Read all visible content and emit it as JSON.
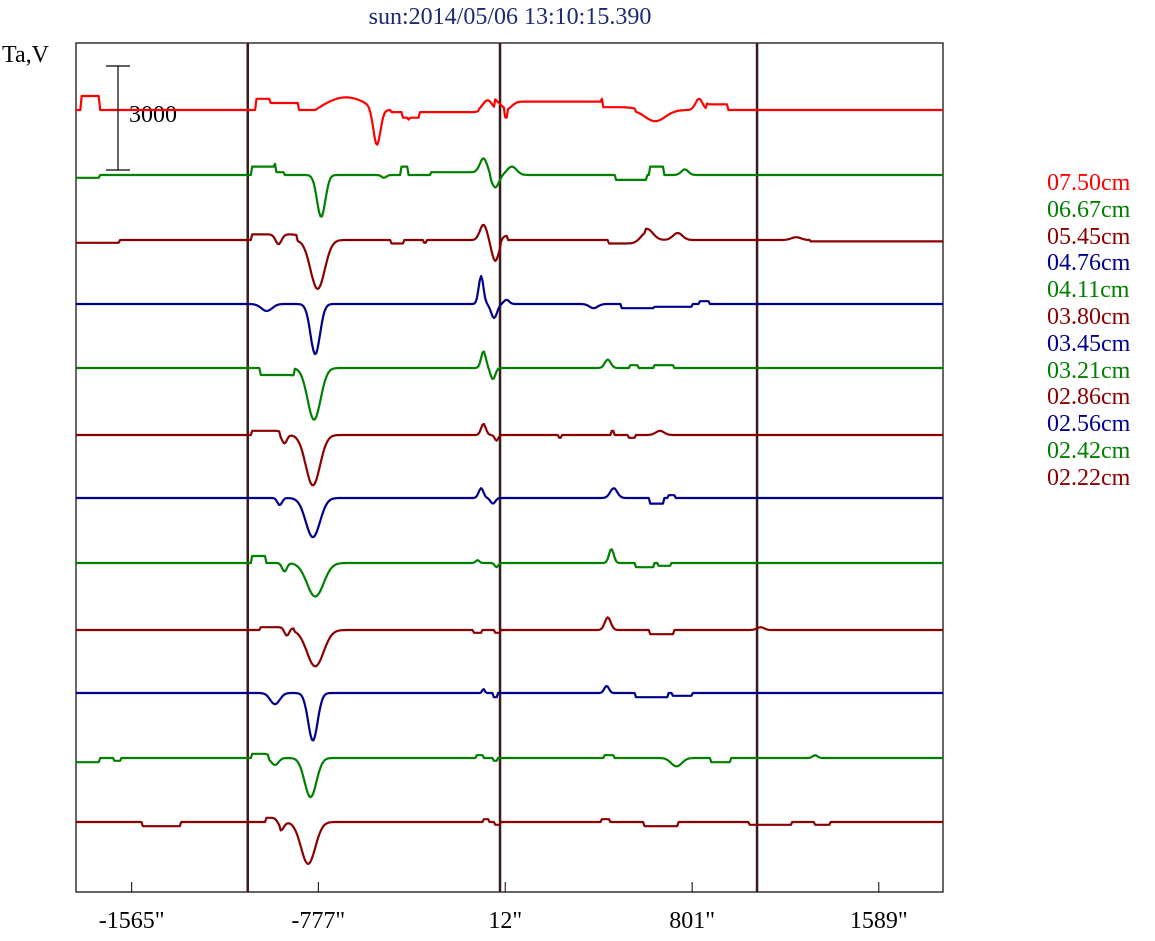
{
  "title": "sun:2014/05/06 13:10:15.390",
  "ylabel": "Ta,V",
  "scale_bar_label": "3000",
  "chart_data": {
    "type": "line",
    "title": "sun:2014/05/06 13:10:15.390",
    "ylabel": "Ta,V",
    "xlim": [
      -1800,
      1860
    ],
    "x_ticks": [
      -1565,
      -777,
      12,
      801,
      1589
    ],
    "x_tick_labels": [
      "-1565\"",
      "-777\"",
      "12\"",
      "801\"",
      "1589\""
    ],
    "vertical_lines_x": [
      -1075,
      -10,
      1075
    ],
    "scale_bar_value": 3000,
    "legend_position": "right",
    "series": [
      {
        "name": "07.50cm",
        "color": "#ff0000",
        "baseline": 110,
        "features": [
          [
            -1780,
            -1700,
            -1.0,
            "box"
          ],
          [
            -1040,
            -980,
            -0.8,
            "box"
          ],
          [
            -980,
            -860,
            -0.5,
            "box"
          ],
          [
            -790,
            -530,
            -1.0,
            "bump"
          ],
          [
            -560,
            -500,
            2.5,
            "gauss"
          ],
          [
            -400,
            -390,
            0.15,
            "gauss"
          ],
          [
            -470,
            -100,
            0.15,
            "box"
          ],
          [
            -100,
            -25,
            -0.7,
            "gauss"
          ],
          [
            -25,
            60,
            0.55,
            "gauss"
          ],
          [
            20,
            80,
            -0.6,
            "box"
          ],
          [
            80,
            420,
            -0.6,
            "box"
          ],
          [
            420,
            560,
            -0.2,
            "box"
          ],
          [
            560,
            730,
            0.8,
            "gauss"
          ],
          [
            800,
            860,
            -0.8,
            "gauss"
          ],
          [
            860,
            950,
            -0.4,
            "box"
          ],
          [
            1010,
            1860,
            0.0,
            "box"
          ],
          [
            -30,
            10,
            -0.65,
            "box"
          ],
          [
            -420,
            -350,
            0.4,
            "box"
          ]
        ]
      },
      {
        "name": "06.67cm",
        "color": "#008000",
        "baseline": 175,
        "features": [
          [
            -1800,
            -1700,
            0.2,
            "box"
          ],
          [
            -1060,
            -960,
            -0.6,
            "box"
          ],
          [
            -960,
            -920,
            -0.2,
            "box"
          ],
          [
            -800,
            -730,
            3.0,
            "gauss"
          ],
          [
            -520,
            -480,
            0.2,
            "gauss"
          ],
          [
            -110,
            -50,
            -1.0,
            "gauss"
          ],
          [
            -60,
            0,
            0.9,
            "gauss"
          ],
          [
            0,
            80,
            -0.6,
            "gauss"
          ],
          [
            -300,
            -50,
            -0.2,
            "box"
          ],
          [
            -430,
            -400,
            -0.6,
            "box"
          ],
          [
            480,
            610,
            0.35,
            "box"
          ],
          [
            620,
            680,
            -0.6,
            "box"
          ],
          [
            740,
            800,
            -0.4,
            "gauss"
          ],
          [
            920,
            1860,
            0.0,
            "box"
          ]
        ]
      },
      {
        "name": "05.45cm",
        "color": "#8b0000",
        "baseline": 240,
        "features": [
          [
            -1800,
            -1620,
            0.2,
            "box"
          ],
          [
            -1060,
            -870,
            -0.4,
            "box"
          ],
          [
            -840,
            -720,
            3.5,
            "gauss"
          ],
          [
            -970,
            -920,
            0.7,
            "gauss"
          ],
          [
            -470,
            -420,
            0.25,
            "box"
          ],
          [
            -110,
            -50,
            -1.1,
            "gauss"
          ],
          [
            -60,
            0,
            1.5,
            "gauss"
          ],
          [
            -10,
            20,
            -0.3,
            "box"
          ],
          [
            -330,
            -320,
            0.2,
            "box"
          ],
          [
            450,
            600,
            0.25,
            "box"
          ],
          [
            560,
            660,
            -0.8,
            "gauss"
          ],
          [
            700,
            780,
            -0.5,
            "gauss"
          ],
          [
            1200,
            1280,
            -0.2,
            "gauss"
          ],
          [
            1300,
            1860,
            0.1,
            "box"
          ]
        ]
      },
      {
        "name": "04.76cm",
        "color": "#00008b",
        "baseline": 304,
        "features": [
          [
            -1040,
            -950,
            0.5,
            "gauss"
          ],
          [
            -830,
            -750,
            3.6,
            "gauss"
          ],
          [
            -110,
            -70,
            -2.0,
            "gauss"
          ],
          [
            -60,
            -10,
            1.0,
            "gauss"
          ],
          [
            -5,
            40,
            -0.3,
            "gauss"
          ],
          [
            350,
            420,
            0.3,
            "gauss"
          ],
          [
            500,
            640,
            0.3,
            "box"
          ],
          [
            640,
            800,
            0.2,
            "box"
          ],
          [
            830,
            870,
            -0.2,
            "box"
          ]
        ]
      },
      {
        "name": "04.11cm",
        "color": "#008000",
        "baseline": 368,
        "features": [
          [
            -1020,
            -880,
            0.5,
            "box"
          ],
          [
            -850,
            -740,
            3.7,
            "gauss"
          ],
          [
            -100,
            -60,
            -1.2,
            "gauss"
          ],
          [
            -60,
            -20,
            0.8,
            "gauss"
          ],
          [
            420,
            470,
            -0.6,
            "gauss"
          ],
          [
            540,
            570,
            -0.2,
            "box"
          ],
          [
            640,
            720,
            -0.2,
            "box"
          ]
        ]
      },
      {
        "name": "03.80cm",
        "color": "#8b0000",
        "baseline": 435,
        "features": [
          [
            -1060,
            -940,
            -0.3,
            "box"
          ],
          [
            -940,
            -900,
            0.6,
            "gauss"
          ],
          [
            -860,
            -740,
            3.6,
            "gauss"
          ],
          [
            -100,
            -60,
            -0.8,
            "gauss"
          ],
          [
            -40,
            -10,
            0.4,
            "gauss"
          ],
          [
            240,
            250,
            0.2,
            "box"
          ],
          [
            460,
            470,
            -0.6,
            "gauss"
          ],
          [
            530,
            560,
            0.2,
            "box"
          ],
          [
            630,
            700,
            -0.3,
            "gauss"
          ]
        ]
      },
      {
        "name": "03.45cm",
        "color": "#00008b",
        "baseline": 498,
        "features": [
          [
            -960,
            -920,
            0.5,
            "gauss"
          ],
          [
            -860,
            -740,
            2.8,
            "gauss"
          ],
          [
            -110,
            -70,
            -0.7,
            "gauss"
          ],
          [
            -60,
            -20,
            0.4,
            "gauss"
          ],
          [
            440,
            500,
            -0.7,
            "gauss"
          ],
          [
            620,
            680,
            0.4,
            "box"
          ],
          [
            700,
            730,
            -0.2,
            "box"
          ]
        ]
      },
      {
        "name": "03.21cm",
        "color": "#008000",
        "baseline": 563,
        "features": [
          [
            -1060,
            -1000,
            -0.5,
            "box"
          ],
          [
            -940,
            -900,
            0.6,
            "gauss"
          ],
          [
            -860,
            -720,
            2.4,
            "gauss"
          ],
          [
            -120,
            -90,
            -0.2,
            "gauss"
          ],
          [
            -40,
            -10,
            0.3,
            "gauss"
          ],
          [
            440,
            480,
            -1.0,
            "gauss"
          ],
          [
            560,
            640,
            0.3,
            "box"
          ],
          [
            660,
            710,
            0.2,
            "box"
          ]
        ]
      },
      {
        "name": "02.86cm",
        "color": "#8b0000",
        "baseline": 630,
        "features": [
          [
            -1020,
            -880,
            -0.2,
            "box"
          ],
          [
            -930,
            -890,
            0.6,
            "gauss"
          ],
          [
            -860,
            -720,
            2.6,
            "gauss"
          ],
          [
            -120,
            -90,
            0.2,
            "box"
          ],
          [
            -30,
            -10,
            0.2,
            "box"
          ],
          [
            420,
            470,
            -0.9,
            "gauss"
          ],
          [
            620,
            720,
            0.3,
            "box"
          ],
          [
            1060,
            1120,
            -0.2,
            "gauss"
          ]
        ]
      },
      {
        "name": "02.56cm",
        "color": "#00008b",
        "baseline": 693,
        "features": [
          [
            -1000,
            -920,
            0.8,
            "gauss"
          ],
          [
            -840,
            -760,
            3.4,
            "gauss"
          ],
          [
            -90,
            -70,
            -0.3,
            "gauss"
          ],
          [
            -40,
            -20,
            0.3,
            "box"
          ],
          [
            420,
            460,
            -0.5,
            "gauss"
          ],
          [
            560,
            700,
            0.3,
            "box"
          ],
          [
            720,
            800,
            0.2,
            "box"
          ]
        ]
      },
      {
        "name": "02.42cm",
        "color": "#008000",
        "baseline": 758,
        "features": [
          [
            -1800,
            -1700,
            0.3,
            "box"
          ],
          [
            -1640,
            -1610,
            0.2,
            "box"
          ],
          [
            -1060,
            -990,
            -0.3,
            "box"
          ],
          [
            -990,
            -930,
            0.5,
            "gauss"
          ],
          [
            -860,
            -760,
            2.8,
            "gauss"
          ],
          [
            -110,
            -80,
            -0.2,
            "box"
          ],
          [
            -40,
            -20,
            0.2,
            "box"
          ],
          [
            430,
            470,
            -0.2,
            "box"
          ],
          [
            690,
            780,
            0.6,
            "gauss"
          ],
          [
            880,
            960,
            0.3,
            "box"
          ],
          [
            1300,
            1340,
            -0.2,
            "gauss"
          ]
        ]
      },
      {
        "name": "02.22cm",
        "color": "#8b0000",
        "baseline": 822,
        "features": [
          [
            -1520,
            -1360,
            0.3,
            "box"
          ],
          [
            -1000,
            -940,
            -0.3,
            "box"
          ],
          [
            -960,
            -910,
            0.6,
            "gauss"
          ],
          [
            -880,
            -760,
            3.0,
            "gauss"
          ],
          [
            -80,
            -60,
            -0.2,
            "box"
          ],
          [
            -30,
            -10,
            0.2,
            "box"
          ],
          [
            420,
            450,
            -0.2,
            "box"
          ],
          [
            600,
            740,
            0.3,
            "box"
          ],
          [
            1040,
            1220,
            0.2,
            "box"
          ],
          [
            1320,
            1380,
            0.2,
            "box"
          ]
        ]
      }
    ]
  }
}
